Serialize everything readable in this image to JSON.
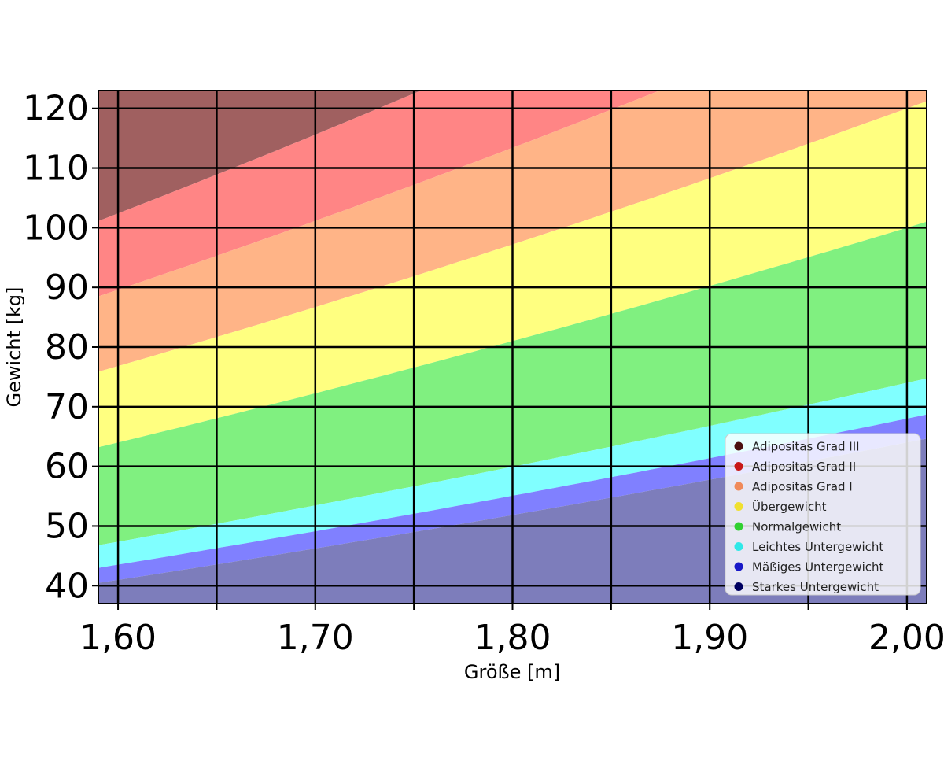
{
  "chart_data": {
    "type": "area",
    "xlabel": "Größe [m]",
    "ylabel": "Gewicht [kg]",
    "xlim": [
      1.59,
      2.01
    ],
    "ylim": [
      37,
      123
    ],
    "x_ticks": [
      1.6,
      1.7,
      1.8,
      1.9,
      2.0
    ],
    "x_tick_labels": [
      "1,60",
      "1,70",
      "1,80",
      "1,90",
      "2,00"
    ],
    "x_grid": [
      1.6,
      1.65,
      1.7,
      1.75,
      1.8,
      1.85,
      1.9,
      1.95,
      2.0
    ],
    "y_ticks": [
      40,
      50,
      60,
      70,
      80,
      90,
      100,
      110,
      120
    ],
    "y_tick_labels": [
      "40",
      "50",
      "60",
      "70",
      "80",
      "90",
      "100",
      "110",
      "120"
    ],
    "grid": true,
    "legend_position": "bottom-right",
    "bmi_boundaries": [
      16,
      17,
      18.5,
      25,
      30,
      35,
      40
    ],
    "series": [
      {
        "name": "Adipositas Grad III",
        "bmi_min": 40,
        "bmi_max": null,
        "color": "#a06060"
      },
      {
        "name": "Adipositas Grad II",
        "bmi_min": 35,
        "bmi_max": 40,
        "color": "#ff8585"
      },
      {
        "name": "Adipositas Grad I",
        "bmi_min": 30,
        "bmi_max": 35,
        "color": "#ffb487"
      },
      {
        "name": "Übergewicht",
        "bmi_min": 25,
        "bmi_max": 30,
        "color": "#ffff80"
      },
      {
        "name": "Normalgewicht",
        "bmi_min": 18.5,
        "bmi_max": 25,
        "color": "#80f080"
      },
      {
        "name": "Leichtes Untergewicht",
        "bmi_min": 17,
        "bmi_max": 18.5,
        "color": "#80ffff"
      },
      {
        "name": "Mäßiges Untergewicht",
        "bmi_min": 16,
        "bmi_max": 17,
        "color": "#8080ff"
      },
      {
        "name": "Starkes Untergewicht",
        "bmi_min": null,
        "bmi_max": 16,
        "color": "#7d7dbb"
      }
    ],
    "legend_marker_colors": [
      "#4d1010",
      "#c81818",
      "#f08a5a",
      "#f0e030",
      "#30d030",
      "#30e8e8",
      "#1818c8",
      "#000060"
    ]
  }
}
